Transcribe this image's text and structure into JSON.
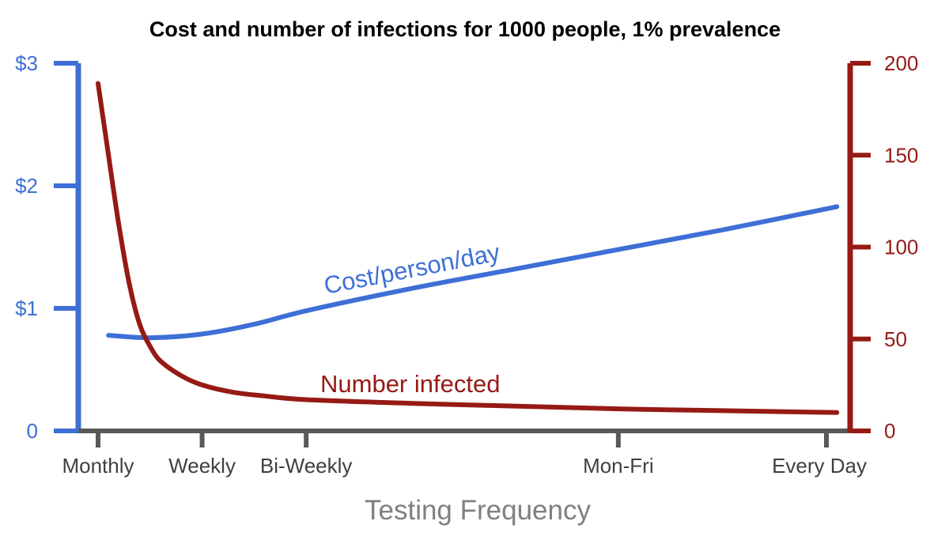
{
  "chart_data": {
    "type": "line",
    "title": "Cost and number of infections for 1000 people, 1% prevalence",
    "xlabel": "Testing Frequency",
    "categories": [
      "Monthly",
      "Weekly",
      "Bi-Weekly",
      "Mon-Fri",
      "Every Day"
    ],
    "x_positions": [
      0,
      1,
      2,
      5,
      7
    ],
    "x_range": [
      0,
      7
    ],
    "y_left": {
      "label": "Cost/person/day",
      "ticks": [
        0,
        1,
        2,
        3
      ],
      "tick_labels": [
        "0",
        "$1",
        "$2",
        "$3"
      ],
      "ylim": [
        0,
        3
      ],
      "color": "#3d6fd6"
    },
    "y_right": {
      "label": "Number infected",
      "ticks": [
        0,
        50,
        100,
        150,
        200
      ],
      "tick_labels": [
        "0",
        "50",
        "100",
        "150",
        "200"
      ],
      "ylim": [
        0,
        200
      ],
      "color": "#961a14"
    },
    "series": [
      {
        "name": "Cost/person/day",
        "axis": "left",
        "color": "#3d6fd6",
        "x": [
          0.1,
          0.5,
          1.0,
          1.5,
          2.0,
          3.0,
          4.0,
          5.0,
          6.0,
          7.1
        ],
        "values": [
          0.78,
          0.76,
          0.79,
          0.87,
          0.98,
          1.16,
          1.32,
          1.48,
          1.64,
          1.83
        ]
      },
      {
        "name": "Number infected",
        "axis": "right",
        "color": "#961a14",
        "x": [
          0.0,
          0.1,
          0.2,
          0.3,
          0.4,
          0.5,
          0.6,
          0.8,
          1.0,
          1.3,
          1.6,
          2.0,
          3.0,
          4.0,
          5.0,
          6.0,
          7.1
        ],
        "values": [
          189,
          150,
          112,
          80,
          58,
          46,
          38,
          30,
          25,
          21,
          19,
          17,
          15,
          13.5,
          12,
          11,
          10
        ]
      }
    ]
  }
}
